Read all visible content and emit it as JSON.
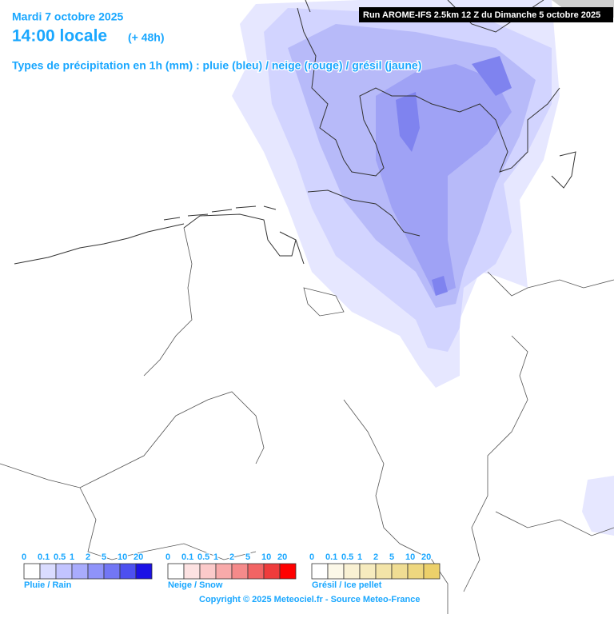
{
  "header": {
    "date": "Mardi 7 octobre 2025",
    "time": "14:00 locale",
    "lead": "(+ 48h)",
    "subtitle": "Types de précipitation en 1h (mm) : pluie (bleu) / neige (rouge) / grésil (jaune)",
    "run": "Run AROME-IFS 2.5km 12 Z du Dimanche 5 octobre 2025"
  },
  "legends": [
    {
      "label": "Pluie / Rain",
      "ticks": [
        0,
        0.1,
        0.5,
        1,
        2,
        5,
        10,
        20
      ],
      "colors": [
        "#ffffff",
        "#dadcff",
        "#c2c4ff",
        "#a9acfd",
        "#8f93fa",
        "#7276f5",
        "#4d50f0",
        "#1c12e6"
      ]
    },
    {
      "label": "Neige / Snow",
      "ticks": [
        0,
        0.1,
        0.5,
        1,
        2,
        5,
        10,
        20
      ],
      "colors": [
        "#ffffff",
        "#fde2e2",
        "#fbcaca",
        "#f8aaaa",
        "#f58a8a",
        "#f26464",
        "#ef3c3c",
        "#ff0000"
      ]
    },
    {
      "label": "Grésil / Ice pellet",
      "ticks": [
        0,
        0.1,
        0.5,
        1,
        2,
        5,
        10,
        20
      ],
      "colors": [
        "#ffffff",
        "#fcf8e8",
        "#f9f1d3",
        "#f6ebbe",
        "#f3e4a8",
        "#f0dd93",
        "#eed77f",
        "#ecd06a"
      ]
    }
  ],
  "footer": {
    "copyright": "Copyright © 2025 Meteociel.fr - Source Meteo-France"
  }
}
